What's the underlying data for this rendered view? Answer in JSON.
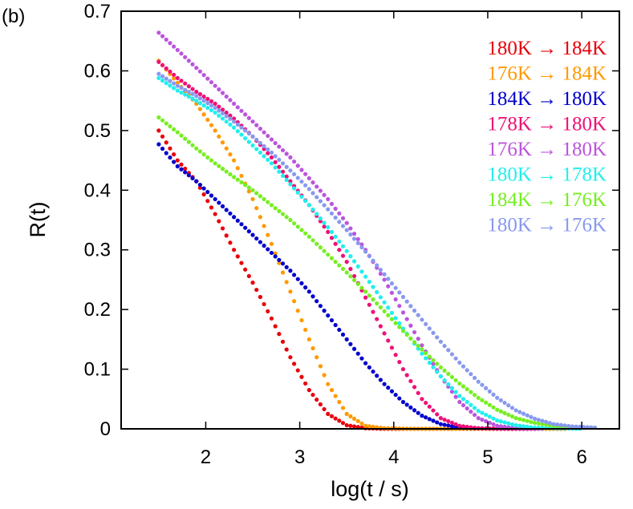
{
  "panel_label": "(b)",
  "chart_data": {
    "type": "scatter",
    "title": "",
    "xlabel": "log(t / s)",
    "ylabel": "R(t)",
    "xlim": [
      1.1,
      6.4
    ],
    "ylim": [
      0,
      0.7
    ],
    "xticks": [
      2,
      3,
      4,
      5,
      6
    ],
    "yticks": [
      0,
      0.1,
      0.2,
      0.3,
      0.4,
      0.5,
      0.6,
      0.7
    ],
    "xtick_labels": [
      "2",
      "3",
      "4",
      "5",
      "6"
    ],
    "ytick_labels": [
      "0",
      "0.1",
      "0.2",
      "0.3",
      "0.4",
      "0.5",
      "0.6",
      "0.7"
    ],
    "grid": false,
    "legend_position": "top-right",
    "series": [
      {
        "name": "180K → 184K",
        "color": "#e8000b",
        "x": [
          1.5,
          1.7,
          1.9,
          2.1,
          2.3,
          2.5,
          2.7,
          2.9,
          3.1,
          3.3,
          3.5,
          3.7,
          3.9,
          4.2,
          4.6,
          5.0,
          5.4,
          5.85
        ],
        "y": [
          0.5,
          0.45,
          0.415,
          0.36,
          0.3,
          0.245,
          0.185,
          0.12,
          0.065,
          0.025,
          0.006,
          0.001,
          0,
          0,
          0,
          0,
          0,
          0
        ]
      },
      {
        "name": "176K → 184K",
        "color": "#ff9900",
        "x": [
          1.5,
          1.7,
          1.9,
          2.1,
          2.3,
          2.5,
          2.7,
          2.9,
          3.1,
          3.3,
          3.5,
          3.7,
          3.9,
          4.2,
          4.6,
          5.0,
          5.4,
          5.85
        ],
        "y": [
          0.617,
          0.58,
          0.545,
          0.5,
          0.45,
          0.385,
          0.31,
          0.23,
          0.15,
          0.075,
          0.025,
          0.005,
          0.001,
          0,
          0,
          0,
          0,
          0
        ]
      },
      {
        "name": "184K → 180K",
        "color": "#0000cc",
        "x": [
          1.5,
          1.7,
          1.9,
          2.1,
          2.3,
          2.5,
          2.7,
          2.9,
          3.1,
          3.3,
          3.5,
          3.7,
          3.9,
          4.1,
          4.3,
          4.5,
          4.7,
          4.9,
          5.2,
          5.5
        ],
        "y": [
          0.477,
          0.44,
          0.415,
          0.385,
          0.355,
          0.325,
          0.295,
          0.265,
          0.23,
          0.19,
          0.15,
          0.11,
          0.075,
          0.045,
          0.022,
          0.008,
          0.002,
          0.001,
          0,
          0
        ]
      },
      {
        "name": "178K → 180K",
        "color": "#ee1177",
        "x": [
          1.5,
          1.7,
          1.9,
          2.1,
          2.3,
          2.5,
          2.7,
          2.9,
          3.1,
          3.3,
          3.5,
          3.7,
          3.9,
          4.1,
          4.3,
          4.5,
          4.7,
          4.9,
          5.2,
          5.5
        ],
        "y": [
          0.615,
          0.588,
          0.565,
          0.545,
          0.52,
          0.49,
          0.455,
          0.415,
          0.375,
          0.33,
          0.28,
          0.22,
          0.16,
          0.1,
          0.05,
          0.018,
          0.005,
          0.001,
          0,
          0
        ]
      },
      {
        "name": "176K → 180K",
        "color": "#bb55dd",
        "x": [
          1.5,
          1.7,
          1.9,
          2.1,
          2.3,
          2.5,
          2.7,
          2.9,
          3.1,
          3.3,
          3.5,
          3.7,
          3.9,
          4.1,
          4.3,
          4.5,
          4.7,
          4.9,
          5.1,
          5.3,
          5.6
        ],
        "y": [
          0.664,
          0.635,
          0.605,
          0.575,
          0.545,
          0.515,
          0.485,
          0.455,
          0.42,
          0.385,
          0.345,
          0.3,
          0.25,
          0.195,
          0.14,
          0.088,
          0.045,
          0.018,
          0.005,
          0.001,
          0
        ]
      },
      {
        "name": "180K → 178K",
        "color": "#22eeee",
        "x": [
          1.5,
          1.7,
          1.9,
          2.1,
          2.3,
          2.5,
          2.7,
          2.9,
          3.1,
          3.3,
          3.5,
          3.7,
          3.9,
          4.1,
          4.3,
          4.5,
          4.7,
          4.9,
          5.1,
          5.3,
          5.5,
          5.7,
          6.0
        ],
        "y": [
          0.588,
          0.567,
          0.55,
          0.53,
          0.505,
          0.475,
          0.445,
          0.41,
          0.375,
          0.338,
          0.298,
          0.255,
          0.212,
          0.168,
          0.126,
          0.088,
          0.055,
          0.03,
          0.014,
          0.006,
          0.002,
          0.001,
          0
        ]
      },
      {
        "name": "184K → 176K",
        "color": "#77ee22",
        "x": [
          1.5,
          1.7,
          1.9,
          2.1,
          2.3,
          2.5,
          2.7,
          2.9,
          3.1,
          3.3,
          3.5,
          3.7,
          3.9,
          4.1,
          4.3,
          4.5,
          4.7,
          4.9,
          5.1,
          5.3,
          5.5,
          5.7,
          5.9,
          6.15
        ],
        "y": [
          0.522,
          0.497,
          0.47,
          0.445,
          0.422,
          0.4,
          0.375,
          0.35,
          0.322,
          0.292,
          0.262,
          0.23,
          0.197,
          0.164,
          0.133,
          0.103,
          0.076,
          0.052,
          0.032,
          0.018,
          0.01,
          0.005,
          0.003,
          0.002
        ]
      },
      {
        "name": "180K → 176K",
        "color": "#8899ee",
        "x": [
          1.5,
          1.7,
          1.9,
          2.1,
          2.3,
          2.5,
          2.7,
          2.9,
          3.1,
          3.3,
          3.5,
          3.7,
          3.9,
          4.1,
          4.3,
          4.5,
          4.7,
          4.9,
          5.1,
          5.3,
          5.5,
          5.7,
          5.9,
          6.15
        ],
        "y": [
          0.595,
          0.575,
          0.558,
          0.538,
          0.515,
          0.49,
          0.463,
          0.433,
          0.402,
          0.368,
          0.333,
          0.297,
          0.259,
          0.221,
          0.183,
          0.146,
          0.111,
          0.079,
          0.052,
          0.031,
          0.017,
          0.008,
          0.004,
          0.002
        ]
      }
    ]
  }
}
